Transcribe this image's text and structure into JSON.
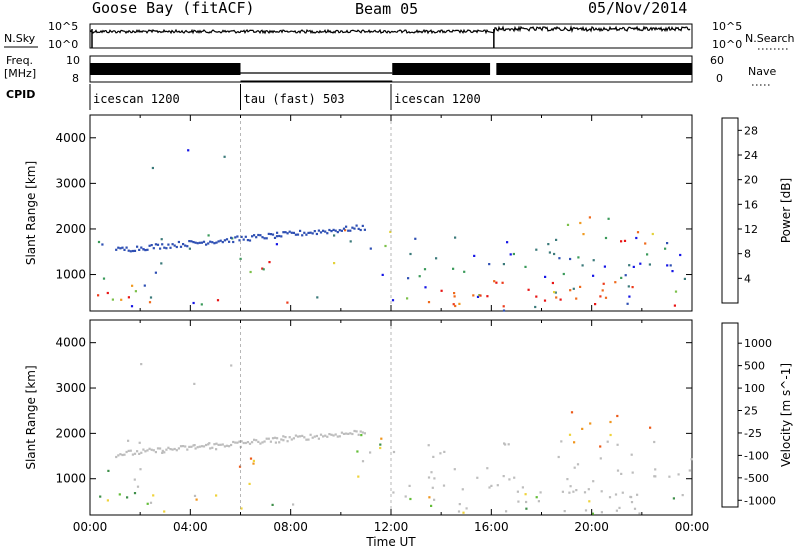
{
  "header": {
    "station": "Goose Bay (fitACF)",
    "beam": "Beam 05",
    "date": "05/Nov/2014"
  },
  "left_labels": {
    "nsky": "N.Sky",
    "freq": "Freq.",
    "freq_unit": "[MHz]",
    "cpid": "CPID"
  },
  "right_labels": {
    "nsearch": "N.Search",
    "nave": "Nave"
  },
  "small_axes": {
    "noise_top": "10^5",
    "noise_bottom": "10^0",
    "freq_top": "10",
    "freq_bottom": "8",
    "nave_top": "60",
    "nave_bottom": "0"
  },
  "cpid_segments": [
    {
      "label": "icescan 1200",
      "start": 0,
      "end": 6
    },
    {
      "label": "tau (fast) 503",
      "start": 6,
      "end": 12
    },
    {
      "label": "icescan 1200",
      "start": 12,
      "end": 24
    }
  ],
  "colors": {
    "power": [
      "#1414e6",
      "#2e4fb3",
      "#3b7a7a",
      "#3a9a5a",
      "#7cc04a",
      "#e3d23a",
      "#f09a20",
      "#ef6a1c",
      "#ec3a1a",
      "#e81515"
    ],
    "velocity": [
      "#2b3fb8",
      "#2f6a9a",
      "#3f8f4a",
      "#63bd38",
      "#bdbdbd",
      "#bdbdbd",
      "#efd33a",
      "#f0961e",
      "#ec5a18",
      "#e81818"
    ]
  },
  "chart_data": [
    {
      "type": "heatmap",
      "title": "",
      "xlabel": "Time UT",
      "ylabel": "Slant Range [km]",
      "xlim": [
        0,
        24
      ],
      "ylim": [
        200,
        4500
      ],
      "x_ticks": [
        "00:00",
        "04:00",
        "08:00",
        "12:00",
        "16:00",
        "20:00",
        "00:00"
      ],
      "y_ticks": [
        1000,
        2000,
        3000,
        4000
      ],
      "colorbar": {
        "label": "Power [dB]",
        "ticks": [
          "4",
          "8",
          "12",
          "16",
          "20",
          "24",
          "28"
        ],
        "range": [
          0,
          30
        ]
      }
    },
    {
      "type": "heatmap",
      "title": "",
      "xlabel": "Time UT",
      "ylabel": "Slant Range [km]",
      "xlim": [
        0,
        24
      ],
      "ylim": [
        200,
        4500
      ],
      "x_ticks": [
        "00:00",
        "04:00",
        "08:00",
        "12:00",
        "16:00",
        "20:00",
        "00:00"
      ],
      "y_ticks": [
        1000,
        2000,
        3000,
        4000
      ],
      "colorbar": {
        "label": "Velocity [m s^-1]",
        "ticks": [
          "1000",
          "500",
          "100",
          "25",
          "-25",
          "-100",
          "-500",
          "-1000"
        ]
      }
    }
  ]
}
